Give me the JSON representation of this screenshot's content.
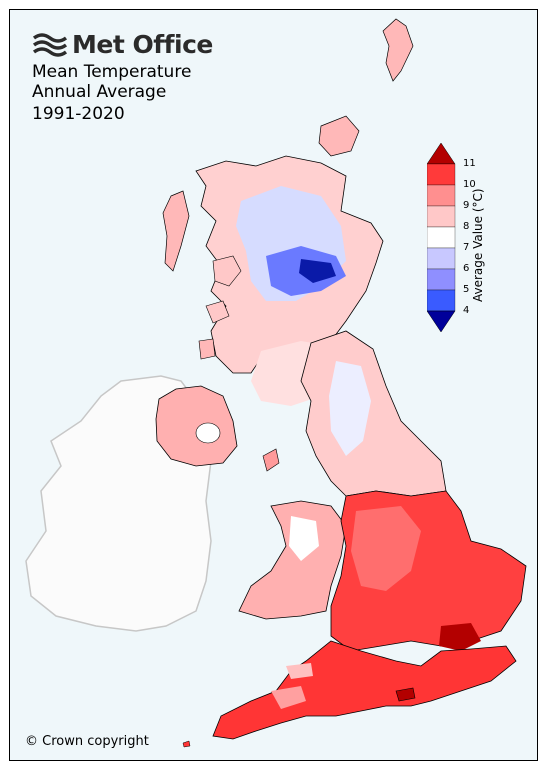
{
  "header": {
    "logo_text": "Met Office",
    "title_lines": [
      "Mean Temperature",
      "Annual Average",
      "1991-2020"
    ]
  },
  "legend": {
    "title": "Average Value (°C)",
    "ticks": [
      "11",
      "10",
      "9",
      "8",
      "7",
      "6",
      "5",
      "4"
    ],
    "colors": {
      "above_11": "#b30000",
      "10_11": "#ff3a3a",
      "9_10": "#ff8f8f",
      "8_9": "#ffc8c8",
      "7_8": "#ffffff",
      "6_7": "#c8c8ff",
      "5_6": "#8f8fff",
      "4_5": "#3a5bff",
      "below_4": "#00009a"
    }
  },
  "footer": {
    "copyright": "© Crown copyright"
  },
  "colors": {
    "background": "#eff7fa",
    "ireland_fill": "#fbfbfb",
    "ireland_outline": "#c7c7c7"
  }
}
